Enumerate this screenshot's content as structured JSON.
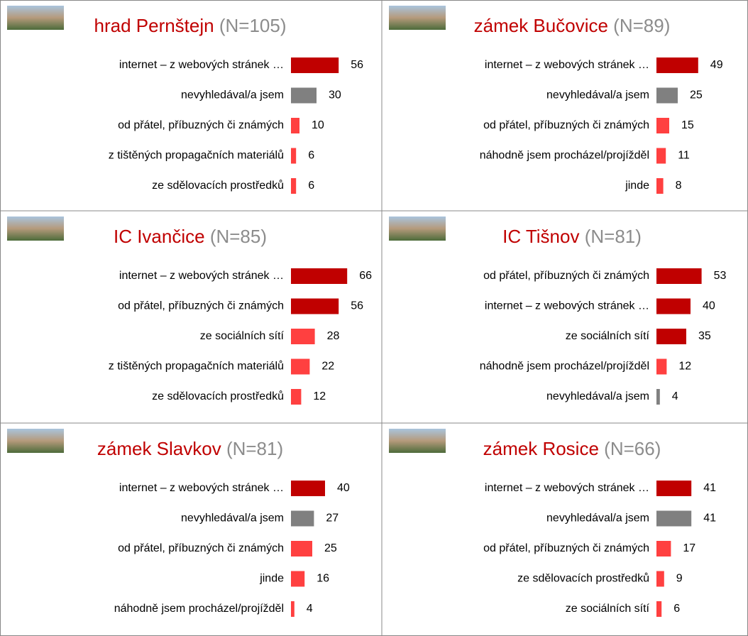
{
  "chart_data": [
    {
      "type": "bar",
      "title": "hrad Pernštejn",
      "n_label": "(N=105)",
      "categories": [
        "internet – z webových stránek …",
        "nevyhledával/a jsem",
        "od přátel, příbuzných či známých",
        "z tištěných propagačních materiálů",
        "ze sdělovacích prostředků"
      ],
      "values": [
        56,
        30,
        10,
        6,
        6
      ],
      "colors": [
        "#c00000",
        "#808080",
        "#ff4040",
        "#ff4040",
        "#ff4040"
      ],
      "xlim": [
        0,
        100
      ]
    },
    {
      "type": "bar",
      "title": "zámek Bučovice",
      "n_label": "(N=89)",
      "categories": [
        "internet – z webových stránek …",
        "nevyhledával/a jsem",
        "od přátel, příbuzných či známých",
        "náhodně jsem procházel/projížděl",
        "jinde"
      ],
      "values": [
        49,
        25,
        15,
        11,
        8
      ],
      "colors": [
        "#c00000",
        "#808080",
        "#ff4040",
        "#ff4040",
        "#ff4040"
      ],
      "xlim": [
        0,
        100
      ]
    },
    {
      "type": "bar",
      "title": "IC Ivančice",
      "n_label": "(N=85)",
      "categories": [
        "internet – z webových stránek …",
        "od přátel, příbuzných či známých",
        "ze sociálních sítí",
        "z tištěných propagačních materiálů",
        "ze sdělovacích prostředků"
      ],
      "values": [
        66,
        56,
        28,
        22,
        12
      ],
      "colors": [
        "#c00000",
        "#c00000",
        "#ff4040",
        "#ff4040",
        "#ff4040"
      ],
      "xlim": [
        0,
        100
      ]
    },
    {
      "type": "bar",
      "title": "IC Tišnov",
      "n_label": "(N=81)",
      "categories": [
        "od přátel, příbuzných či známých",
        "internet – z webových stránek …",
        "ze sociálních sítí",
        "náhodně jsem procházel/projížděl",
        "nevyhledával/a jsem"
      ],
      "values": [
        53,
        40,
        35,
        12,
        4
      ],
      "colors": [
        "#c00000",
        "#c00000",
        "#c00000",
        "#ff4040",
        "#808080"
      ],
      "xlim": [
        0,
        100
      ]
    },
    {
      "type": "bar",
      "title": "zámek Slavkov",
      "n_label": "(N=81)",
      "categories": [
        "internet – z webových stránek …",
        "nevyhledával/a jsem",
        "od přátel, příbuzných či známých",
        "jinde",
        "náhodně jsem procházel/projížděl"
      ],
      "values": [
        40,
        27,
        25,
        16,
        4
      ],
      "colors": [
        "#c00000",
        "#808080",
        "#ff4040",
        "#ff4040",
        "#ff4040"
      ],
      "xlim": [
        0,
        100
      ]
    },
    {
      "type": "bar",
      "title": "zámek Rosice",
      "n_label": "(N=66)",
      "categories": [
        "internet – z webových stránek …",
        "nevyhledával/a jsem",
        "od přátel, příbuzných či známých",
        "ze sdělovacích prostředků",
        "ze sociálních sítí"
      ],
      "values": [
        41,
        41,
        17,
        9,
        6
      ],
      "colors": [
        "#c00000",
        "#808080",
        "#ff4040",
        "#ff4040",
        "#ff4040"
      ],
      "xlim": [
        0,
        100
      ]
    }
  ]
}
